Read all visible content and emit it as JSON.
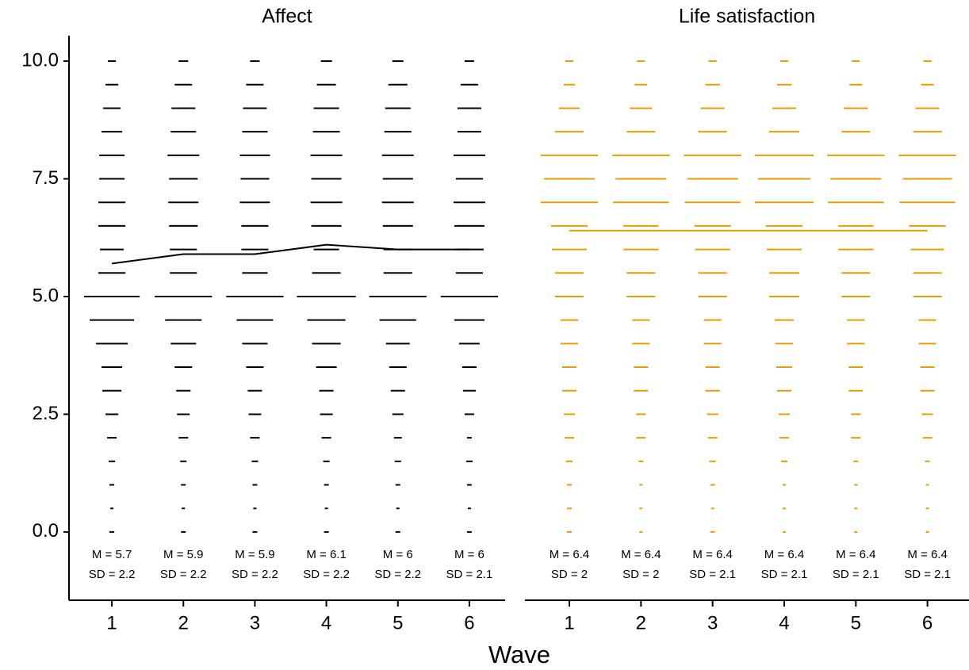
{
  "chart_data": {
    "type": "dash",
    "xlabel": "Wave",
    "ylim": [
      -1.45,
      10.54
    ],
    "yticks": [
      {
        "value": 0,
        "label": "0.0"
      },
      {
        "value": 2.5,
        "label": "2.5"
      },
      {
        "value": 5,
        "label": "5.0"
      },
      {
        "value": 7.5,
        "label": "7.5"
      },
      {
        "value": 10,
        "label": "10.0"
      }
    ],
    "levels": [
      0,
      0.5,
      1,
      1.5,
      2,
      2.5,
      3,
      3.5,
      4,
      4.5,
      5,
      5.5,
      6,
      6.5,
      7,
      7.5,
      8,
      8.5,
      9,
      9.5,
      10
    ],
    "panels": [
      {
        "title": "Affect",
        "color": "#000000",
        "x": [
          1,
          2,
          3,
          4,
          5,
          6
        ],
        "xlim": [
          0.4,
          6.5
        ],
        "xticks": [
          1,
          2,
          3,
          4,
          5,
          6
        ],
        "means": [
          5.7,
          5.9,
          5.9,
          6.1,
          6,
          6
        ],
        "mean_labels": [
          "M = 5.7",
          "M = 5.9",
          "M = 5.9",
          "M = 6.1",
          "M = 6",
          "M = 6"
        ],
        "sd_labels": [
          "SD = 2.2",
          "SD = 2.2",
          "SD = 2.2",
          "SD = 2.2",
          "SD = 2.2",
          "SD = 2.1"
        ],
        "widths": [
          [
            6,
            4,
            6,
            8,
            12,
            16,
            24,
            26,
            40,
            56,
            70,
            34,
            30,
            34,
            34,
            32,
            32,
            26,
            22,
            16,
            10
          ],
          [
            6,
            4,
            6,
            8,
            12,
            16,
            18,
            22,
            32,
            46,
            72,
            34,
            34,
            36,
            38,
            36,
            40,
            32,
            30,
            22,
            12
          ],
          [
            6,
            4,
            6,
            8,
            12,
            16,
            18,
            22,
            32,
            46,
            72,
            32,
            34,
            34,
            38,
            36,
            38,
            32,
            30,
            22,
            12
          ],
          [
            6,
            4,
            6,
            8,
            12,
            16,
            18,
            26,
            36,
            48,
            74,
            36,
            32,
            38,
            40,
            38,
            40,
            34,
            32,
            24,
            14
          ],
          [
            6,
            4,
            6,
            8,
            10,
            14,
            18,
            22,
            30,
            46,
            72,
            36,
            36,
            38,
            40,
            38,
            40,
            34,
            32,
            24,
            14
          ],
          [
            6,
            4,
            6,
            8,
            6,
            12,
            16,
            18,
            26,
            38,
            72,
            34,
            36,
            38,
            40,
            34,
            40,
            30,
            30,
            22,
            12
          ]
        ]
      },
      {
        "title": "Life satisfaction",
        "color": "#E69F00",
        "x": [
          1,
          2,
          3,
          4,
          5,
          6
        ],
        "xlim": [
          0.38,
          6.58
        ],
        "xticks": [
          1,
          2,
          3,
          4,
          5,
          6
        ],
        "means": [
          6.4,
          6.4,
          6.4,
          6.4,
          6.4,
          6.4
        ],
        "mean_labels": [
          "M = 6.4",
          "M = 6.4",
          "M = 6.4",
          "M = 6.4",
          "M = 6.4",
          "M = 6.4"
        ],
        "sd_labels": [
          "SD = 2",
          "SD = 2",
          "SD = 2.1",
          "SD = 2.1",
          "SD = 2.1",
          "SD = 2.1"
        ],
        "widths": [
          [
            6,
            6,
            6,
            8,
            12,
            14,
            18,
            18,
            22,
            22,
            36,
            36,
            44,
            46,
            72,
            64,
            72,
            36,
            26,
            14,
            10
          ],
          [
            4,
            4,
            4,
            6,
            12,
            12,
            18,
            18,
            22,
            22,
            36,
            36,
            44,
            44,
            70,
            64,
            72,
            36,
            28,
            16,
            10
          ],
          [
            6,
            4,
            6,
            8,
            12,
            14,
            18,
            18,
            22,
            22,
            36,
            36,
            44,
            46,
            70,
            64,
            72,
            36,
            30,
            18,
            10
          ],
          [
            4,
            4,
            4,
            8,
            12,
            14,
            18,
            20,
            22,
            24,
            38,
            38,
            44,
            46,
            74,
            66,
            74,
            38,
            30,
            18,
            10
          ],
          [
            4,
            4,
            4,
            6,
            12,
            12,
            18,
            18,
            22,
            22,
            36,
            36,
            44,
            44,
            70,
            64,
            72,
            36,
            30,
            16,
            10
          ],
          [
            4,
            4,
            4,
            6,
            12,
            14,
            18,
            18,
            22,
            22,
            36,
            36,
            42,
            46,
            70,
            62,
            72,
            36,
            30,
            16,
            10
          ]
        ]
      }
    ]
  }
}
